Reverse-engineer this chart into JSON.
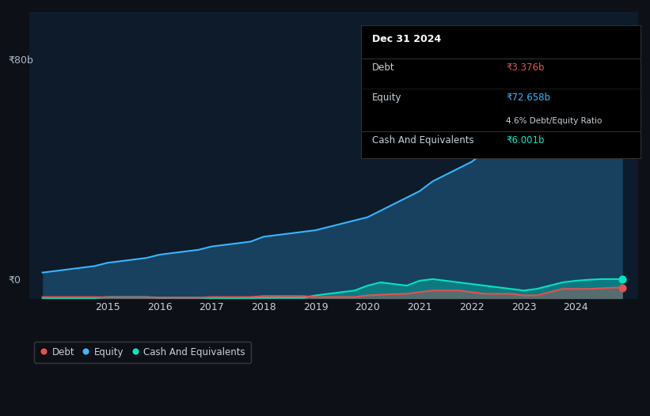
{
  "bg_color": "#0d1117",
  "plot_bg_color": "#0d1b2a",
  "grid_color": "#1e3050",
  "text_color": "#c9d1d9",
  "tooltip_bg": "#000000",
  "equity_color": "#38b6ff",
  "debt_color": "#e05252",
  "cash_color": "#00e5c0",
  "ylabel_color": "#aabbcc",
  "ylabel": "₹80b",
  "ylabel0": "₹0",
  "years": [
    2013.75,
    2014,
    2014.25,
    2014.5,
    2014.75,
    2015,
    2015.25,
    2015.5,
    2015.75,
    2016,
    2016.25,
    2016.5,
    2016.75,
    2017,
    2017.25,
    2017.5,
    2017.75,
    2018,
    2018.25,
    2018.5,
    2018.75,
    2019,
    2019.25,
    2019.5,
    2019.75,
    2020,
    2020.25,
    2020.5,
    2020.75,
    2021,
    2021.25,
    2021.5,
    2021.75,
    2022,
    2022.25,
    2022.5,
    2022.75,
    2023,
    2023.25,
    2023.5,
    2023.75,
    2024,
    2024.25,
    2024.5,
    2024.75,
    2024.9
  ],
  "equity": [
    8,
    8.5,
    9,
    9.5,
    10,
    11,
    11.5,
    12,
    12.5,
    13.5,
    14,
    14.5,
    15,
    16,
    16.5,
    17,
    17.5,
    19,
    19.5,
    20,
    20.5,
    21,
    22,
    23,
    24,
    25,
    27,
    29,
    31,
    33,
    36,
    38,
    40,
    42,
    45,
    48,
    50,
    53,
    48,
    45,
    52,
    56,
    60,
    65,
    72,
    72.658
  ],
  "debt": [
    0.5,
    0.5,
    0.5,
    0.5,
    0.5,
    0.4,
    0.4,
    0.4,
    0.4,
    0.3,
    0.3,
    0.3,
    0.3,
    0.5,
    0.5,
    0.5,
    0.5,
    0.8,
    0.8,
    0.8,
    0.8,
    0.5,
    0.5,
    0.5,
    0.5,
    1.0,
    1.2,
    1.4,
    1.5,
    2.0,
    2.5,
    2.5,
    2.5,
    2.0,
    1.5,
    1.5,
    1.5,
    1.0,
    1.0,
    2.0,
    3.0,
    3.0,
    3.0,
    3.2,
    3.376,
    3.376
  ],
  "cash": [
    0.2,
    0.2,
    0.2,
    0.2,
    0.2,
    0.5,
    0.5,
    0.5,
    0.5,
    0.3,
    0.3,
    0.3,
    0.3,
    0.2,
    0.2,
    0.2,
    0.2,
    0.3,
    0.3,
    0.3,
    0.3,
    1.0,
    1.5,
    2.0,
    2.5,
    4.0,
    5.0,
    4.5,
    4.0,
    5.5,
    6.0,
    5.5,
    5.0,
    4.5,
    4.0,
    3.5,
    3.0,
    2.5,
    3.0,
    4.0,
    5.0,
    5.5,
    5.8,
    6.0,
    6.001,
    6.001
  ],
  "x_ticks": [
    2015,
    2016,
    2017,
    2018,
    2019,
    2020,
    2021,
    2022,
    2023,
    2024
  ],
  "ylim": [
    0,
    88
  ],
  "xlim": [
    2013.5,
    2025.2
  ],
  "tooltip": {
    "date": "Dec 31 2024",
    "debt_label": "Debt",
    "debt_value": "₹3.376b",
    "equity_label": "Equity",
    "equity_value": "₹72.658b",
    "ratio_text": "4.6% Debt/Equity Ratio",
    "cash_label": "Cash And Equivalents",
    "cash_value": "₹6.001b"
  },
  "legend": [
    {
      "label": "Debt",
      "color": "#e05252"
    },
    {
      "label": "Equity",
      "color": "#38b6ff"
    },
    {
      "label": "Cash And Equivalents",
      "color": "#00e5c0"
    }
  ]
}
